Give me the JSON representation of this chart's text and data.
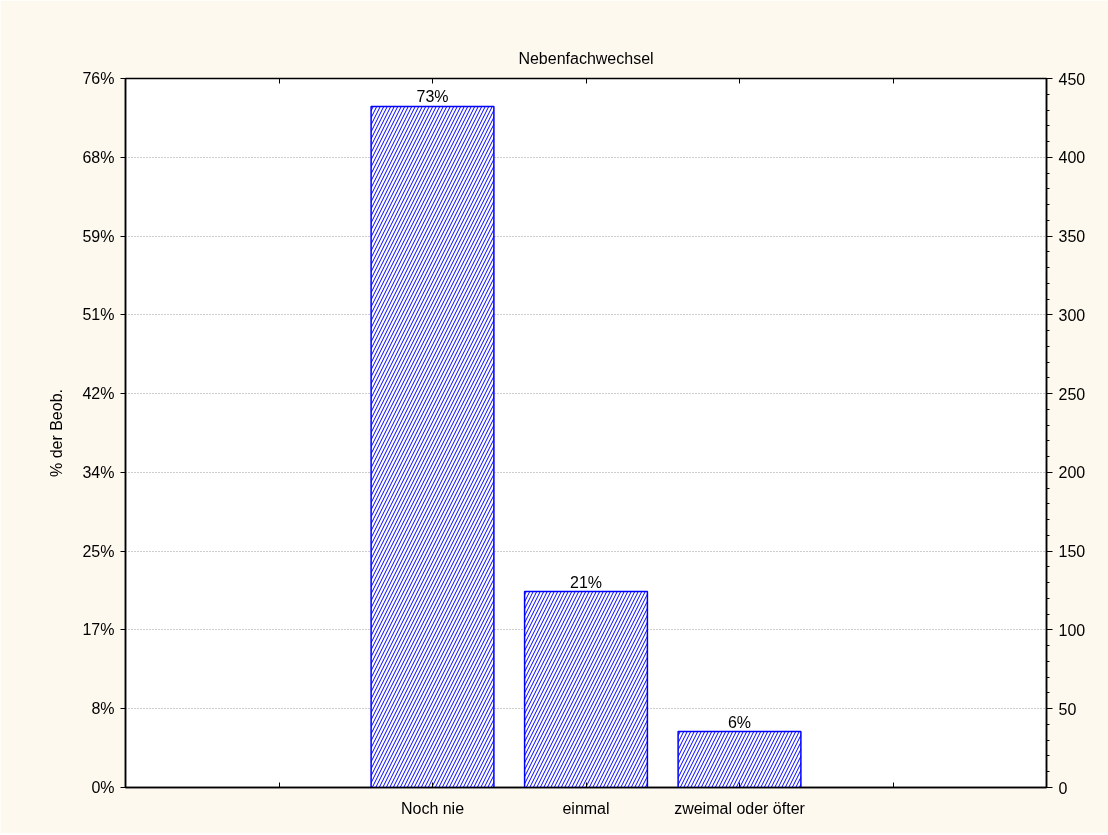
{
  "chart_data": {
    "type": "bar",
    "title": "Nebenfachwechsel",
    "ylabel": "% der Beob.",
    "categories": [
      null,
      "Noch nie",
      "einmal",
      "zweimal oder öfter",
      null
    ],
    "values": [
      null,
      73,
      21,
      6,
      null
    ],
    "color": "#0000ff",
    "value_labels": [
      null,
      "73%",
      "21%",
      "6%",
      null
    ],
    "ylim": [
      0,
      76
    ],
    "yticks": [
      {
        "value": 0,
        "label": "0%"
      },
      {
        "value": 8.44,
        "label": "8%"
      },
      {
        "value": 16.89,
        "label": "17%"
      },
      {
        "value": 25.33,
        "label": "25%"
      },
      {
        "value": 33.78,
        "label": "34%"
      },
      {
        "value": 42.22,
        "label": "42%"
      },
      {
        "value": 50.67,
        "label": "51%"
      },
      {
        "value": 59.11,
        "label": "59%"
      },
      {
        "value": 67.56,
        "label": "68%"
      },
      {
        "value": 76,
        "label": "76%"
      }
    ],
    "y2lim": [
      0,
      450
    ],
    "y2ticks": [
      0,
      50,
      100,
      150,
      200,
      250,
      300,
      350,
      400,
      450
    ],
    "grid": "y"
  }
}
